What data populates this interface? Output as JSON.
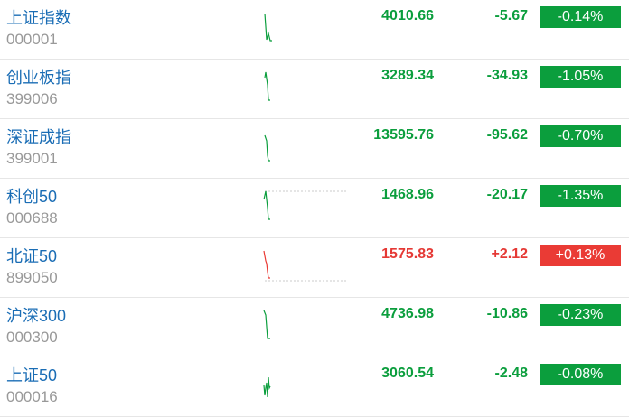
{
  "colors": {
    "down": "#0b9e3d",
    "up": "#ea3b35"
  },
  "rows": [
    {
      "name": "上证指数",
      "code": "000001",
      "price": "4010.66",
      "change": "-5.67",
      "pct": "-0.14%",
      "dir": "down"
    },
    {
      "name": "创业板指",
      "code": "399006",
      "price": "3289.34",
      "change": "-34.93",
      "pct": "-1.05%",
      "dir": "down"
    },
    {
      "name": "深证成指",
      "code": "399001",
      "price": "13595.76",
      "change": "-95.62",
      "pct": "-0.70%",
      "dir": "down"
    },
    {
      "name": "科创50",
      "code": "000688",
      "price": "1468.96",
      "change": "-20.17",
      "pct": "-1.35%",
      "dir": "down"
    },
    {
      "name": "北证50",
      "code": "899050",
      "price": "1575.83",
      "change": "+2.12",
      "pct": "+0.13%",
      "dir": "up"
    },
    {
      "name": "沪深300",
      "code": "000300",
      "price": "4736.98",
      "change": "-10.86",
      "pct": "-0.23%",
      "dir": "down"
    },
    {
      "name": "上证50",
      "code": "000016",
      "price": "3060.54",
      "change": "-2.48",
      "pct": "-0.08%",
      "dir": "down"
    }
  ]
}
